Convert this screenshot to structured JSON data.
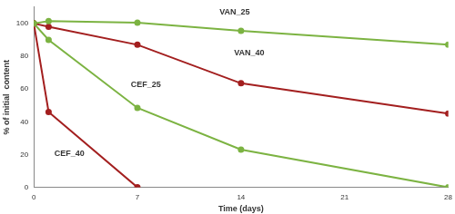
{
  "chart_data": {
    "type": "line",
    "x_label": "Time (days)",
    "y_label": "% of initial  content",
    "x": [
      0,
      1,
      7,
      14,
      28
    ],
    "series": [
      {
        "name": "VAN_25",
        "color": "#7cb342",
        "values": [
          100,
          101.5,
          100.5,
          95.5,
          87
        ]
      },
      {
        "name": "VAN_40",
        "color": "#a31f1f",
        "values": [
          100,
          98,
          87,
          63.5,
          45
        ]
      },
      {
        "name": "CEF_25",
        "color": "#7cb342",
        "values": [
          100,
          90,
          48.5,
          23,
          0
        ]
      },
      {
        "name": "CEF_40",
        "color": "#a31f1f",
        "values": [
          100,
          46,
          0,
          null,
          null
        ]
      }
    ],
    "xlim": [
      0,
      28
    ],
    "xticks": [
      0,
      7,
      14,
      21,
      28
    ],
    "ylim": [
      0,
      110
    ],
    "yticks": [
      0,
      20,
      40,
      60,
      80,
      100
    ],
    "grid": false,
    "marker": "circle",
    "line_style": "solid"
  }
}
